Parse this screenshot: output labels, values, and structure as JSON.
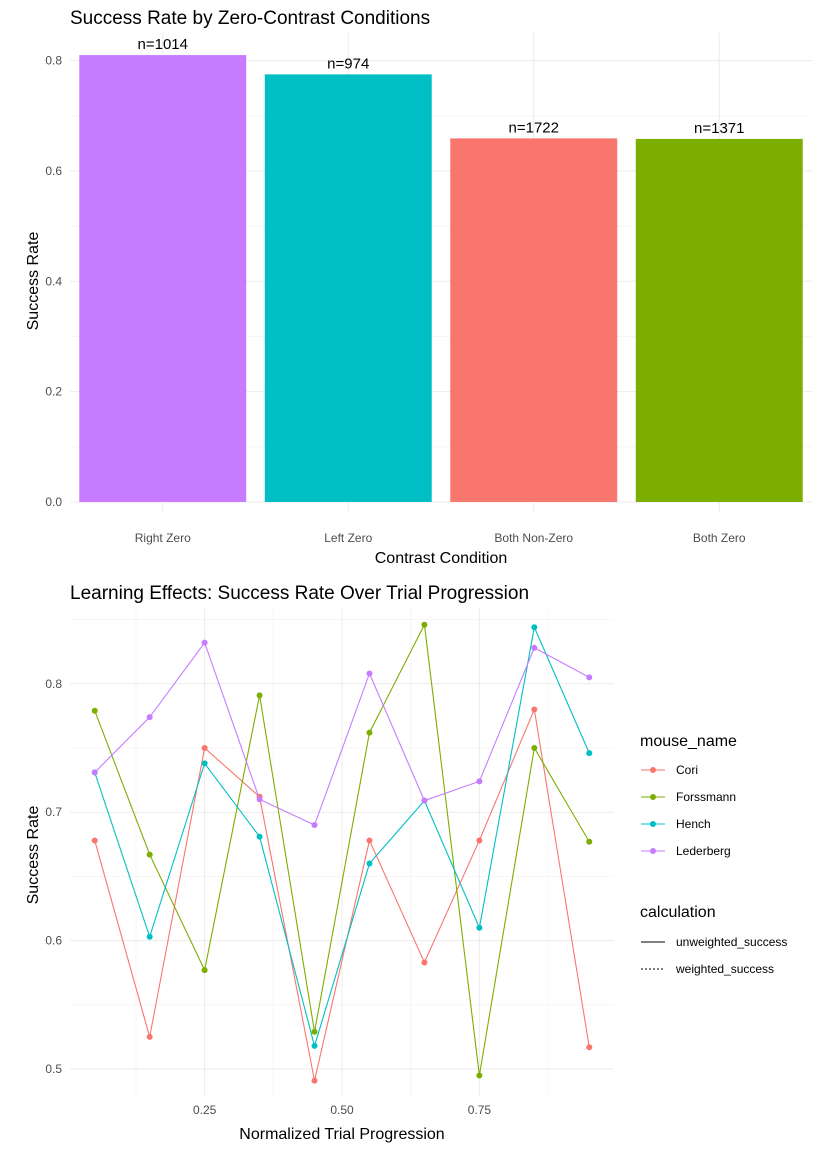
{
  "chart_data": [
    {
      "type": "bar",
      "title": "Success Rate by Zero-Contrast Conditions",
      "xlabel": "Contrast Condition",
      "ylabel": "Success Rate",
      "categories": [
        "Right Zero",
        "Left Zero",
        "Both Non-Zero",
        "Both Zero"
      ],
      "values": [
        0.81,
        0.775,
        0.659,
        0.658
      ],
      "labels": [
        "n=1014",
        "n=974",
        "n=1722",
        "n=1371"
      ],
      "colors": [
        "#C77CFF",
        "#00BFC4",
        "#F8766D",
        "#7CAE00"
      ],
      "yticks": [
        0.0,
        0.2,
        0.4,
        0.6,
        0.8
      ],
      "ytick_labels": [
        "0.0",
        "0.2",
        "0.4",
        "0.6",
        "0.8"
      ],
      "ylim": [
        -0.02,
        0.85
      ],
      "grid": true,
      "legend": "none"
    },
    {
      "type": "line",
      "title": "Learning Effects: Success Rate Over Trial Progression",
      "xlabel": "Normalized Trial Progression",
      "ylabel": "Success Rate",
      "xlim": [
        0.005,
        0.995
      ],
      "ylim": [
        0.479,
        0.859
      ],
      "xticks": [
        0.25,
        0.5,
        0.75
      ],
      "xtick_labels": [
        "0.25",
        "0.50",
        "0.75"
      ],
      "yticks": [
        0.5,
        0.6,
        0.7,
        0.8
      ],
      "ytick_labels": [
        "0.5",
        "0.6",
        "0.7",
        "0.8"
      ],
      "grid": true,
      "legend": "right",
      "x": [
        0.05,
        0.15,
        0.25,
        0.35,
        0.45,
        0.55,
        0.65,
        0.75,
        0.85,
        0.95
      ],
      "series": [
        {
          "name": "Cori",
          "color": "#F8766D",
          "values": [
            0.678,
            0.525,
            0.75,
            0.712,
            0.491,
            0.678,
            0.583,
            0.678,
            0.78,
            0.517
          ]
        },
        {
          "name": "Forssmann",
          "color": "#7CAE00",
          "values": [
            0.779,
            0.667,
            0.577,
            0.791,
            0.529,
            0.762,
            0.846,
            0.495,
            0.75,
            0.677
          ]
        },
        {
          "name": "Hench",
          "color": "#00BFC4",
          "values": [
            0.731,
            0.603,
            0.738,
            0.681,
            0.518,
            0.66,
            0.709,
            0.61,
            0.844,
            0.746
          ]
        },
        {
          "name": "Lederberg",
          "color": "#C77CFF",
          "values": [
            0.731,
            0.774,
            0.832,
            0.71,
            0.69,
            0.808,
            0.709,
            0.724,
            0.828,
            0.805
          ]
        }
      ],
      "legend_groups": [
        {
          "title": "mouse_name",
          "items": [
            "Cori",
            "Forssmann",
            "Hench",
            "Lederberg"
          ]
        },
        {
          "title": "calculation",
          "items": [
            "unweighted_success",
            "weighted_success"
          ]
        }
      ]
    }
  ]
}
